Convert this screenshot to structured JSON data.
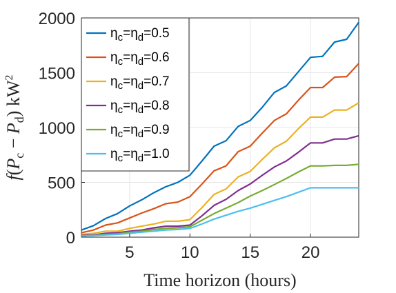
{
  "chart_data": {
    "type": "line",
    "title": "",
    "xlabel": "Time horizon (hours)",
    "ylabel": "f(P_c − P_d) kW^2",
    "ylabel_parts": {
      "f": "f",
      "open": "(",
      "Pc_base": "P",
      "Pc_sub": "c",
      "minus": " − ",
      "Pd_base": "P",
      "Pd_sub": "d",
      "close": ")",
      "unit": " kW",
      "unit_sup": "2"
    },
    "xlim": [
      1,
      24
    ],
    "ylim": [
      0,
      2000
    ],
    "xticks": [
      "5",
      "10",
      "15",
      "20"
    ],
    "xtick_values": [
      5,
      10,
      15,
      20
    ],
    "yticks": [
      "0",
      "500",
      "1000",
      "1500",
      "2000"
    ],
    "ytick_values": [
      0,
      500,
      1000,
      1500,
      2000
    ],
    "grid": true,
    "legend_position": "top-left",
    "x": [
      1,
      2,
      3,
      4,
      5,
      6,
      7,
      8,
      9,
      10,
      11,
      12,
      13,
      14,
      15,
      16,
      17,
      18,
      19,
      20,
      21,
      22,
      23,
      24
    ],
    "series": [
      {
        "name": "ηc=ηd=0.5",
        "legend": {
          "a": "η",
          "a_sub": "c",
          "eq": "=",
          "b": "η",
          "b_sub": "d",
          "val": "=0.5"
        },
        "color": "#0072BD",
        "values": [
          65,
          105,
          170,
          215,
          285,
          340,
          405,
          460,
          500,
          565,
          695,
          830,
          880,
          1010,
          1065,
          1185,
          1320,
          1380,
          1510,
          1640,
          1650,
          1780,
          1805,
          1960
        ]
      },
      {
        "name": "ηc=ηd=0.6",
        "legend": {
          "a": "η",
          "a_sub": "c",
          "eq": "=",
          "b": "η",
          "b_sub": "d",
          "val": "=0.6"
        },
        "color": "#D95319",
        "values": [
          40,
          65,
          110,
          130,
          175,
          220,
          260,
          305,
          320,
          370,
          485,
          605,
          650,
          780,
          830,
          950,
          1065,
          1125,
          1250,
          1365,
          1365,
          1460,
          1465,
          1585
        ]
      },
      {
        "name": "ηc=ηd=0.7",
        "legend": {
          "a": "η",
          "a_sub": "c",
          "eq": "=",
          "b": "η",
          "b_sub": "d",
          "val": "=0.7"
        },
        "color": "#EDB120",
        "values": [
          25,
          35,
          55,
          55,
          80,
          100,
          120,
          145,
          145,
          160,
          270,
          390,
          440,
          550,
          600,
          710,
          815,
          875,
          990,
          1095,
          1095,
          1160,
          1160,
          1225
        ]
      },
      {
        "name": "ηc=ηd=0.8",
        "legend": {
          "a": "η",
          "a_sub": "c",
          "eq": "=",
          "b": "η",
          "b_sub": "d",
          "val": "=0.8"
        },
        "color": "#7E2F8E",
        "values": [
          15,
          20,
          35,
          40,
          55,
          65,
          85,
          100,
          100,
          110,
          195,
          290,
          345,
          425,
          485,
          565,
          640,
          695,
          775,
          860,
          860,
          895,
          895,
          925
        ]
      },
      {
        "name": "ηc=ηd=0.9",
        "legend": {
          "a": "η",
          "a_sub": "c",
          "eq": "=",
          "b": "η",
          "b_sub": "d",
          "val": "=0.9"
        },
        "color": "#77AC30",
        "values": [
          10,
          15,
          25,
          30,
          45,
          55,
          70,
          80,
          85,
          95,
          155,
          215,
          265,
          315,
          375,
          425,
          480,
          535,
          595,
          650,
          650,
          655,
          655,
          665
        ]
      },
      {
        "name": "ηc=ηd=1.0",
        "legend": {
          "a": "η",
          "a_sub": "c",
          "eq": "=",
          "b": "η",
          "b_sub": "d",
          "val": "=1.0"
        },
        "color": "#4DBEEE",
        "values": [
          10,
          15,
          20,
          25,
          35,
          45,
          55,
          65,
          70,
          80,
          120,
          165,
          200,
          235,
          265,
          300,
          335,
          370,
          410,
          450,
          450,
          450,
          450,
          450
        ]
      }
    ]
  }
}
